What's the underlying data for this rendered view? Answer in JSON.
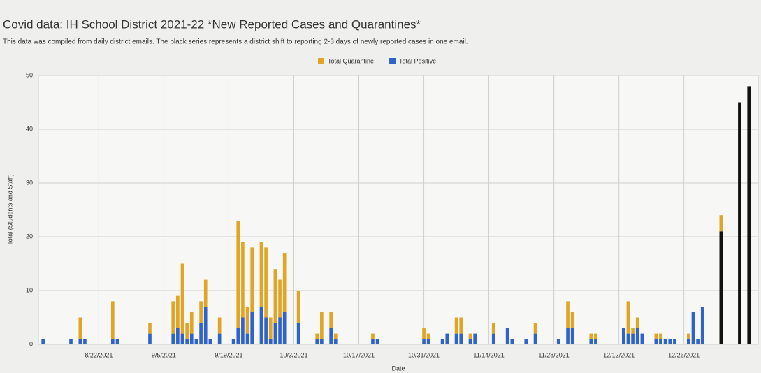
{
  "chart_data": {
    "type": "stacked_bar",
    "title": "Covid data: IH School District 2021-22 *New Reported Cases and Quarantines*",
    "subtitle": "This data was compiled from daily district emails. The black series represents a district shift to reporting 2-3 days of newly reported cases in one email.",
    "x_label": "Date",
    "y_label": "Total (Students and Staff)",
    "x": [
      "2021-08-10",
      "2021-08-16",
      "2021-08-18",
      "2021-08-19",
      "2021-08-25",
      "2021-08-26",
      "2021-09-02",
      "2021-09-07",
      "2021-09-08",
      "2021-09-09",
      "2021-09-10",
      "2021-09-11",
      "2021-09-12",
      "2021-09-13",
      "2021-09-14",
      "2021-09-15",
      "2021-09-17",
      "2021-09-20",
      "2021-09-21",
      "2021-09-22",
      "2021-09-23",
      "2021-09-24",
      "2021-09-26",
      "2021-09-27",
      "2021-09-28",
      "2021-09-29",
      "2021-09-30",
      "2021-10-01",
      "2021-10-04",
      "2021-10-08",
      "2021-10-09",
      "2021-10-11",
      "2021-10-12",
      "2021-10-20",
      "2021-10-21",
      "2021-10-31",
      "2021-11-01",
      "2021-11-04",
      "2021-11-05",
      "2021-11-07",
      "2021-11-08",
      "2021-11-10",
      "2021-11-11",
      "2021-11-15",
      "2021-11-18",
      "2021-11-19",
      "2021-11-22",
      "2021-11-24",
      "2021-11-29",
      "2021-12-01",
      "2021-12-02",
      "2021-12-06",
      "2021-12-07",
      "2021-12-13",
      "2021-12-14",
      "2021-12-15",
      "2021-12-16",
      "2021-12-17",
      "2021-12-20",
      "2021-12-21",
      "2021-12-22",
      "2021-12-23",
      "2021-12-24",
      "2021-12-27",
      "2021-12-28",
      "2021-12-29",
      "2021-12-30",
      "2022-01-03",
      "2022-01-07",
      "2022-01-09"
    ],
    "series": [
      {
        "name": "Total Quarantine",
        "color": "#e0a526",
        "values": [
          null,
          null,
          4,
          null,
          7,
          null,
          2,
          6,
          6,
          13,
          3,
          4,
          null,
          4,
          5,
          null,
          3,
          null,
          20,
          14,
          5,
          12,
          12,
          13,
          4,
          10,
          7,
          11,
          6,
          1,
          5,
          3,
          1,
          1,
          null,
          2,
          1,
          null,
          null,
          3,
          3,
          1,
          null,
          2,
          null,
          null,
          null,
          2,
          null,
          5,
          3,
          1,
          1,
          null,
          6,
          1,
          2,
          null,
          1,
          1,
          null,
          null,
          null,
          1,
          null,
          null,
          null,
          3,
          null,
          null
        ]
      },
      {
        "name": "Total Positive",
        "color": "#2f63c9",
        "values": [
          1,
          1,
          1,
          1,
          1,
          1,
          2,
          2,
          3,
          2,
          1,
          2,
          1,
          4,
          7,
          1,
          2,
          1,
          3,
          5,
          2,
          6,
          7,
          5,
          1,
          4,
          5,
          6,
          4,
          1,
          1,
          3,
          1,
          1,
          1,
          1,
          1,
          1,
          2,
          2,
          2,
          1,
          2,
          2,
          3,
          1,
          1,
          2,
          1,
          3,
          3,
          1,
          1,
          3,
          2,
          2,
          3,
          2,
          1,
          1,
          1,
          1,
          1,
          1,
          6,
          1,
          7,
          null,
          null,
          null
        ]
      },
      {
        "color": "#111111",
        "values": [
          null,
          null,
          null,
          null,
          null,
          null,
          null,
          null,
          null,
          null,
          null,
          null,
          null,
          null,
          null,
          null,
          null,
          null,
          null,
          null,
          null,
          null,
          null,
          null,
          null,
          null,
          null,
          null,
          null,
          null,
          null,
          null,
          null,
          null,
          null,
          null,
          null,
          null,
          null,
          null,
          null,
          null,
          null,
          null,
          null,
          null,
          null,
          null,
          null,
          null,
          null,
          null,
          null,
          null,
          null,
          null,
          null,
          null,
          null,
          null,
          null,
          null,
          null,
          null,
          null,
          null,
          null,
          21,
          45,
          48
        ]
      }
    ],
    "stack_order": [
      1,
      2,
      0
    ],
    "xlim": [
      "2021-08-09",
      "2022-01-11"
    ],
    "xticks": [
      {
        "value": "2021-08-22",
        "label": "8/22/2021"
      },
      {
        "value": "2021-09-05",
        "label": "9/5/2021"
      },
      {
        "value": "2021-09-19",
        "label": "9/19/2021"
      },
      {
        "value": "2021-10-03",
        "label": "10/3/2021"
      },
      {
        "value": "2021-10-17",
        "label": "10/17/2021"
      },
      {
        "value": "2021-10-31",
        "label": "10/31/2021"
      },
      {
        "value": "2021-11-14",
        "label": "11/14/2021"
      },
      {
        "value": "2021-11-28",
        "label": "11/28/2021"
      },
      {
        "value": "2021-12-12",
        "label": "12/12/2021"
      },
      {
        "value": "2021-12-26",
        "label": "12/26/2021"
      }
    ],
    "ylim": [
      0,
      50
    ],
    "yticks": [
      0,
      10,
      20,
      30,
      40,
      50
    ],
    "grid": true
  }
}
